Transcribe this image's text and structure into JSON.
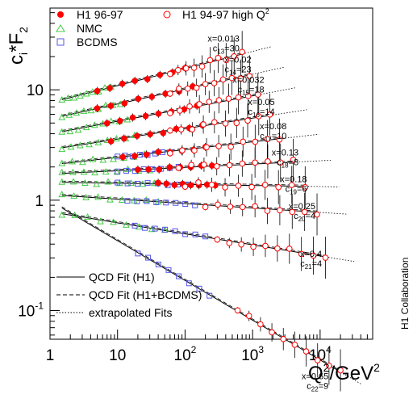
{
  "chart_data": {
    "type": "scatter",
    "xlabel": {
      "base": "Q",
      "sup": "2",
      "rest": "/GeV",
      "sup2": "2"
    },
    "ylabel": {
      "c": "c",
      "sub": "i",
      "star": "*",
      "F": "F",
      "sub2": "2"
    },
    "xscale": "log",
    "yscale": "log",
    "xlim": [
      1,
      60000
    ],
    "ylim": [
      0.055,
      55
    ],
    "x_ticks": [
      {
        "base": "1",
        "exp": ""
      },
      {
        "base": "10",
        "exp": ""
      },
      {
        "base": "10",
        "exp": "2"
      },
      {
        "base": "10",
        "exp": "3"
      },
      {
        "base": "10",
        "exp": "4"
      }
    ],
    "y_ticks": [
      {
        "base": "10",
        "exp": "-1"
      },
      {
        "base": "1",
        "exp": ""
      },
      {
        "base": "10",
        "exp": ""
      }
    ],
    "side_note": "H1 Collaboration",
    "legend": {
      "h1_9697": "H1 96-97",
      "h1_9497": "H1 94-97 high Q",
      "h1_9497_sup": "2",
      "nmc": "NMC",
      "bcdms": "BCDMS",
      "fit_h1": "QCD Fit (H1)",
      "fit_h1_bcdms": "QCD Fit (H1+BCDMS)",
      "extrapolated": "extrapolated Fits"
    },
    "colors": {
      "h1": "#ff0000",
      "nmc": "#44cc44",
      "bcdms": "#5555ee",
      "fit": "#000000"
    },
    "bins": [
      {
        "x": "x=0.013",
        "c": "c",
        "c_sub": "13",
        "c_val": "=30",
        "y0": 8.2,
        "q2min": 1.5,
        "q2max": 1200,
        "slope": 0.155,
        "nmc": [
          1.5,
          8
        ],
        "bcdms": null,
        "h1f": [
          5,
          100
        ],
        "h1o": [
          60,
          700
        ]
      },
      {
        "x": "x=0.02",
        "c": "c",
        "c_sub": "14",
        "c_val": "=23",
        "y0": 5.8,
        "q2min": 1.5,
        "q2max": 1800,
        "slope": 0.135,
        "nmc": [
          1.5,
          11
        ],
        "bcdms": null,
        "h1f": [
          5,
          130
        ],
        "h1o": [
          60,
          900
        ]
      },
      {
        "x": "x=0.032",
        "c": "c",
        "c_sub": "15",
        "c_val": "=18",
        "y0": 4.2,
        "q2min": 1.5,
        "q2max": 2800,
        "slope": 0.115,
        "nmc": [
          1.5,
          14
        ],
        "bcdms": null,
        "h1f": [
          7,
          150
        ],
        "h1o": [
          60,
          1200
        ]
      },
      {
        "x": "x=0.05",
        "c": "c",
        "c_sub": "16",
        "c_val": "=14",
        "y0": 3.0,
        "q2min": 1.5,
        "q2max": 4000,
        "slope": 0.095,
        "nmc": [
          1.5,
          18
        ],
        "bcdms": null,
        "h1f": [
          8,
          180
        ],
        "h1o": [
          60,
          1800
        ]
      },
      {
        "x": "x=0.08",
        "c": "c",
        "c_sub": "17",
        "c_val": "=10",
        "y0": 2.15,
        "q2min": 1.5,
        "q2max": 6000,
        "slope": 0.07,
        "nmc": [
          1.5,
          25
        ],
        "bcdms": [
          10,
          60
        ],
        "h1f": [
          12,
          200
        ],
        "h1o": [
          60,
          2500
        ]
      },
      {
        "x": "x=0.13",
        "c": "c",
        "c_sub": "18",
        "c_val": "=8",
        "y0": 1.75,
        "q2min": 1.5,
        "q2max": 9000,
        "slope": 0.03,
        "nmc": [
          1.5,
          30
        ],
        "bcdms": [
          10,
          80
        ],
        "h1f": [
          20,
          250
        ],
        "h1o": [
          80,
          4000
        ]
      },
      {
        "x": "x=0.18",
        "c": "c",
        "c_sub": "19",
        "c_val": "=6",
        "y0": 1.45,
        "q2min": 1.5,
        "q2max": 12000,
        "slope": -0.01,
        "nmc": [
          1.5,
          35
        ],
        "bcdms": [
          10,
          110
        ],
        "h1f": [
          40,
          280
        ],
        "h1o": [
          100,
          6000
        ]
      },
      {
        "x": "x=0.25",
        "c": "c",
        "c_sub": "20",
        "c_val": "=4",
        "y0": 1.1,
        "q2min": 1.5,
        "q2max": 16000,
        "slope": -0.04,
        "nmc": [
          1.5,
          40
        ],
        "bcdms": [
          14,
          140
        ],
        "h1f": null,
        "h1o": [
          200,
          9000
        ]
      },
      {
        "x": "x=0.4",
        "c": "c",
        "c_sub": "21",
        "c_val": "=4",
        "y0": 0.75,
        "q2min": 1.5,
        "q2max": 20000,
        "slope": -0.1,
        "nmc": [
          1.5,
          50
        ],
        "bcdms": [
          18,
          200
        ],
        "h1f": null,
        "h1o": [
          300,
          12000
        ]
      },
      {
        "x": "x=0.65",
        "c": "c",
        "c_sub": "22",
        "c_val": "=9",
        "y0": 0.85,
        "q2min": 1.5,
        "q2max": 25000,
        "slope": -0.28,
        "nmc": null,
        "bcdms": [
          20,
          230
        ],
        "h1f": null,
        "h1o": [
          600,
          20000
        ]
      }
    ]
  }
}
